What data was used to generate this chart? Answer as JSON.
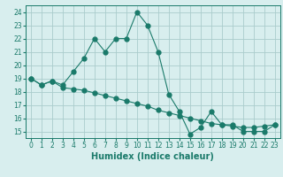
{
  "xlabel": "Humidex (Indice chaleur)",
  "line1_x": [
    0,
    1,
    2,
    3,
    4,
    5,
    6,
    7,
    8,
    9,
    10,
    11,
    12,
    13,
    14,
    15,
    16,
    17,
    18,
    19,
    20,
    21,
    22,
    23
  ],
  "line1_y": [
    19,
    18.5,
    18.8,
    18.5,
    19.5,
    20.5,
    22,
    21,
    22,
    22,
    24,
    23,
    21,
    17.8,
    16.5,
    14.8,
    15.3,
    16.5,
    15.5,
    15.5,
    15,
    15,
    15,
    15.5
  ],
  "line2_x": [
    0,
    1,
    2,
    3,
    4,
    5,
    6,
    7,
    8,
    9,
    10,
    11,
    12,
    13,
    14,
    15,
    16,
    17,
    18,
    19,
    20,
    21,
    22,
    23
  ],
  "line2_y": [
    19,
    18.5,
    18.8,
    18.3,
    18.2,
    18.1,
    17.9,
    17.7,
    17.5,
    17.3,
    17.1,
    16.9,
    16.6,
    16.4,
    16.2,
    16.0,
    15.8,
    15.6,
    15.5,
    15.4,
    15.3,
    15.3,
    15.4,
    15.5
  ],
  "line_color": "#1a7a6a",
  "bg_color": "#d8eeee",
  "grid_color": "#aacccc",
  "ylim": [
    14.5,
    24.5
  ],
  "xlim": [
    -0.5,
    23.5
  ],
  "yticks": [
    15,
    16,
    17,
    18,
    19,
    20,
    21,
    22,
    23,
    24
  ],
  "xticks": [
    0,
    1,
    2,
    3,
    4,
    5,
    6,
    7,
    8,
    9,
    10,
    11,
    12,
    13,
    14,
    15,
    16,
    17,
    18,
    19,
    20,
    21,
    22,
    23
  ],
  "markersize": 3.5,
  "linewidth": 0.8,
  "xlabel_fontsize": 7,
  "tick_fontsize": 5.5
}
